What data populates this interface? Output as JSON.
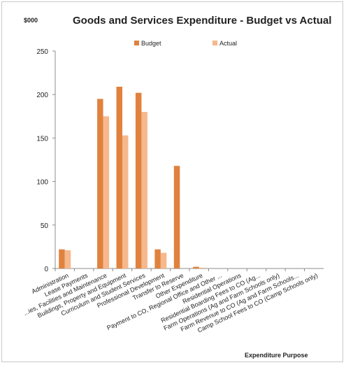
{
  "chart_data": {
    "type": "bar",
    "title": "Goods and Services Expenditure - Budget vs Actual",
    "ylabel": "$000",
    "xlabel": "Expenditure Purpose",
    "ylim": [
      0,
      250
    ],
    "yticks": [
      0,
      50,
      100,
      150,
      200,
      250
    ],
    "legend_position": "top",
    "grid": false,
    "colors": {
      "Budget": "#e0823e",
      "Actual": "#f6b88c"
    },
    "categories": [
      "Administration",
      "Lease Payments",
      "...ies, Facilities and Maintenance",
      "Buildings, Property and Equipment",
      "Curriculum and Student Services",
      "Professional Development",
      "Transfer to Reserve",
      "Other Expenditure",
      "Payment to CO, Regional Office and Other ...",
      "Residential Operations",
      "Residential Boarding Fees to CO (Ag...",
      "Farm Operations (Ag and Farm Schools only)",
      "Farm Revenue to CO (Ag and Farm Schools...",
      "Camp School Fees to CO (Camp Schools only)"
    ],
    "series": [
      {
        "name": "Budget",
        "values": [
          22,
          0,
          195,
          209,
          202,
          22,
          118,
          2,
          0,
          0,
          0,
          0,
          0,
          0
        ]
      },
      {
        "name": "Actual",
        "values": [
          21,
          0,
          175,
          153,
          180,
          18,
          0,
          1,
          0,
          0,
          0,
          0,
          0,
          0
        ]
      }
    ]
  }
}
